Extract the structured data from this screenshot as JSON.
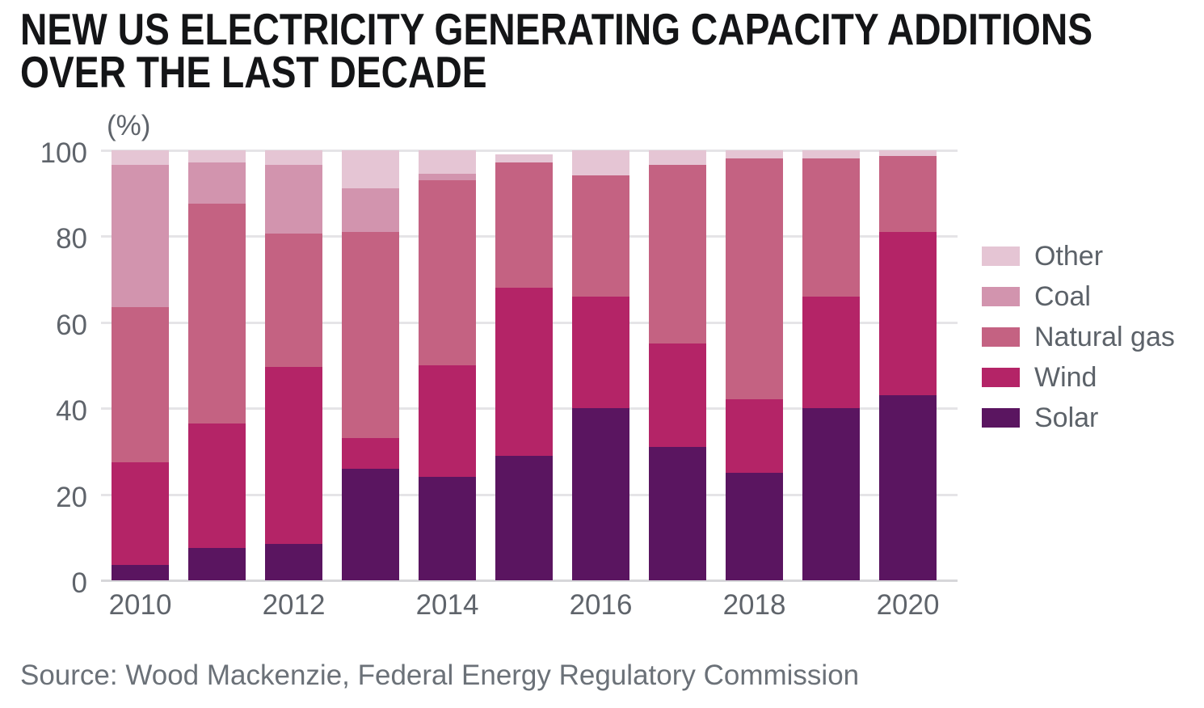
{
  "header": {
    "title_line1": "NEW US ELECTRICITY GENERATING CAPACITY ADDITIONS",
    "title_line2": "OVER THE LAST DECADE"
  },
  "source_note": "Source: Wood Mackenzie, Federal Energy Regulatory Commission",
  "chart_data": {
    "type": "bar",
    "subtype": "stacked-percent",
    "title": "New US electricity generating capacity additions over the last decade",
    "unit_label": "(%)",
    "categories": [
      "2010",
      "2011",
      "2012",
      "2013",
      "2014",
      "2015",
      "2016",
      "2017",
      "2018",
      "2019",
      "2020"
    ],
    "series": [
      {
        "name": "Solar",
        "color": "#5a1560",
        "values": [
          3.5,
          7.5,
          8.5,
          26,
          24,
          29,
          40,
          31,
          25,
          40,
          43
        ]
      },
      {
        "name": "Wind",
        "color": "#b42467",
        "values": [
          24,
          29,
          41,
          7,
          26,
          39,
          26,
          24,
          17,
          26,
          38
        ]
      },
      {
        "name": "Natural gas",
        "color": "#c46282",
        "values": [
          36,
          51,
          31,
          48,
          43,
          29,
          28,
          41.5,
          56,
          32,
          17.5
        ]
      },
      {
        "name": "Coal",
        "color": "#d294ae",
        "values": [
          33,
          9.5,
          16,
          10,
          1.5,
          0,
          0,
          0,
          0,
          0,
          0
        ]
      },
      {
        "name": "Other",
        "color": "#e5c5d4",
        "values": [
          3.5,
          3,
          3.5,
          9,
          5.5,
          2,
          6,
          3.5,
          2,
          2,
          1.5
        ]
      }
    ],
    "y_axis": {
      "ticks": [
        0,
        20,
        40,
        60,
        80,
        100
      ],
      "range": [
        0,
        100
      ],
      "grid": true
    },
    "x_axis": {
      "tick_labels": [
        "2010",
        "2012",
        "2014",
        "2016",
        "2018",
        "2020"
      ]
    },
    "legend": {
      "position": "right",
      "items": [
        {
          "label": "Other",
          "color": "#e5c5d4"
        },
        {
          "label": "Coal",
          "color": "#d294ae"
        },
        {
          "label": "Natural gas",
          "color": "#c46282"
        },
        {
          "label": "Wind",
          "color": "#b42467"
        },
        {
          "label": "Solar",
          "color": "#5a1560"
        }
      ]
    }
  }
}
